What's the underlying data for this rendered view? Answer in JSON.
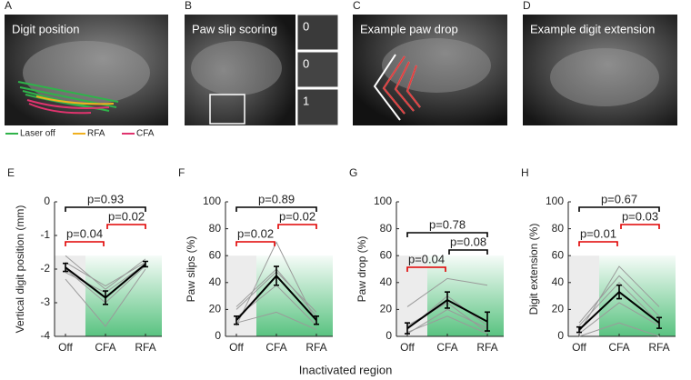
{
  "panels": [
    {
      "letter": "A",
      "label": "Digit position"
    },
    {
      "letter": "B",
      "label": "Paw slip scoring"
    },
    {
      "letter": "C",
      "label": "Example paw drop"
    },
    {
      "letter": "D",
      "label": "Example digit extension"
    }
  ],
  "legend": [
    {
      "label": "Laser off",
      "color": "#2fb34a"
    },
    {
      "label": "RFA",
      "color": "#f0b020"
    },
    {
      "label": "CFA",
      "color": "#e0336e"
    }
  ],
  "slip_scores": [
    0,
    0,
    1
  ],
  "xlabel": "Inactivated region",
  "chart_data": [
    {
      "type": "line",
      "letter": "E",
      "ylabel": "Vertical digit position (mm)",
      "categories": [
        "Off",
        "CFA",
        "RFA"
      ],
      "ylim": [
        -4,
        0
      ],
      "yticks": [
        -4,
        -3,
        -2,
        -1,
        0
      ],
      "shade_top": -1.6,
      "shade_color": "#3cb86a",
      "series": [
        {
          "color": "#9a9a9a",
          "values": [
            -1.8,
            -2.5,
            -1.8
          ]
        },
        {
          "color": "#9a9a9a",
          "values": [
            -2.3,
            -3.7,
            -2.0
          ]
        },
        {
          "color": "#9a9a9a",
          "values": [
            -1.6,
            -2.6,
            -1.7
          ]
        },
        {
          "color": "#9a9a9a",
          "values": [
            -2.0,
            -3.0,
            -1.9
          ]
        },
        {
          "color": "#9a9a9a",
          "values": [
            -2.1,
            -2.7,
            -1.85
          ]
        },
        {
          "color": "#000000",
          "values": [
            -1.95,
            -2.85,
            -1.85
          ],
          "errors": [
            0.12,
            0.2,
            0.08
          ]
        }
      ],
      "brackets": [
        {
          "between": [
            "Off",
            "CFA"
          ],
          "label": "p=0.04",
          "color": "#e00000"
        },
        {
          "between": [
            "CFA",
            "RFA"
          ],
          "label": "p=0.02",
          "color": "#e00000"
        },
        {
          "between": [
            "Off",
            "RFA"
          ],
          "label": "p=0.93",
          "color": "#000000"
        }
      ]
    },
    {
      "type": "line",
      "letter": "F",
      "ylabel": "Paw slips (%)",
      "categories": [
        "Off",
        "CFA",
        "RFA"
      ],
      "ylim": [
        0,
        100
      ],
      "yticks": [
        0,
        20,
        40,
        60,
        80,
        100
      ],
      "shade_top": 60,
      "shade_color": "#3cb86a",
      "series": [
        {
          "color": "#9a9a9a",
          "values": [
            8,
            70,
            10
          ]
        },
        {
          "color": "#9a9a9a",
          "values": [
            14,
            38,
            8
          ]
        },
        {
          "color": "#9a9a9a",
          "values": [
            20,
            48,
            18
          ]
        },
        {
          "color": "#9a9a9a",
          "values": [
            10,
            18,
            5
          ]
        },
        {
          "color": "#9a9a9a",
          "values": [
            22,
            50,
            15
          ]
        },
        {
          "color": "#000000",
          "values": [
            12,
            45,
            12
          ],
          "errors": [
            3,
            7,
            3
          ]
        }
      ],
      "brackets": [
        {
          "between": [
            "Off",
            "CFA"
          ],
          "label": "p=0.02",
          "color": "#e00000"
        },
        {
          "between": [
            "CFA",
            "RFA"
          ],
          "label": "p=0.02",
          "color": "#e00000"
        },
        {
          "between": [
            "Off",
            "RFA"
          ],
          "label": "p=0.89",
          "color": "#000000"
        }
      ]
    },
    {
      "type": "line",
      "letter": "G",
      "ylabel": "Paw drop (%)",
      "categories": [
        "Off",
        "CFA",
        "RFA"
      ],
      "ylim": [
        0,
        100
      ],
      "yticks": [
        0,
        20,
        40,
        60,
        80,
        100
      ],
      "shade_top": 60,
      "shade_color": "#3cb86a",
      "series": [
        {
          "color": "#9a9a9a",
          "values": [
            2,
            20,
            6
          ]
        },
        {
          "color": "#9a9a9a",
          "values": [
            22,
            43,
            38
          ]
        },
        {
          "color": "#9a9a9a",
          "values": [
            5,
            30,
            8
          ]
        },
        {
          "color": "#9a9a9a",
          "values": [
            3,
            15,
            2
          ]
        },
        {
          "color": "#9a9a9a",
          "values": [
            8,
            25,
            3
          ]
        },
        {
          "color": "#000000",
          "values": [
            6,
            27,
            11
          ],
          "errors": [
            4,
            6,
            7
          ]
        }
      ],
      "brackets": [
        {
          "between": [
            "Off",
            "CFA"
          ],
          "label": "p=0.04",
          "color": "#e00000"
        },
        {
          "between": [
            "CFA",
            "RFA"
          ],
          "label": "p=0.08",
          "color": "#000000"
        },
        {
          "between": [
            "Off",
            "RFA"
          ],
          "label": "p=0.78",
          "color": "#000000"
        }
      ]
    },
    {
      "type": "line",
      "letter": "H",
      "ylabel": "Digit extension (%)",
      "categories": [
        "Off",
        "CFA",
        "RFA"
      ],
      "ylim": [
        0,
        100
      ],
      "yticks": [
        0,
        20,
        40,
        60,
        80,
        100
      ],
      "shade_top": 60,
      "shade_color": "#3cb86a",
      "series": [
        {
          "color": "#9a9a9a",
          "values": [
            3,
            52,
            22
          ]
        },
        {
          "color": "#9a9a9a",
          "values": [
            8,
            40,
            10
          ]
        },
        {
          "color": "#9a9a9a",
          "values": [
            2,
            25,
            8
          ]
        },
        {
          "color": "#9a9a9a",
          "values": [
            10,
            45,
            15
          ]
        },
        {
          "color": "#9a9a9a",
          "values": [
            0,
            10,
            0
          ]
        },
        {
          "color": "#000000",
          "values": [
            5,
            33,
            10
          ],
          "errors": [
            2,
            5,
            4
          ]
        }
      ],
      "brackets": [
        {
          "between": [
            "Off",
            "CFA"
          ],
          "label": "p=0.01",
          "color": "#e00000"
        },
        {
          "between": [
            "CFA",
            "RFA"
          ],
          "label": "p=0.03",
          "color": "#e00000"
        },
        {
          "between": [
            "Off",
            "RFA"
          ],
          "label": "p=0.67",
          "color": "#000000"
        }
      ]
    }
  ]
}
